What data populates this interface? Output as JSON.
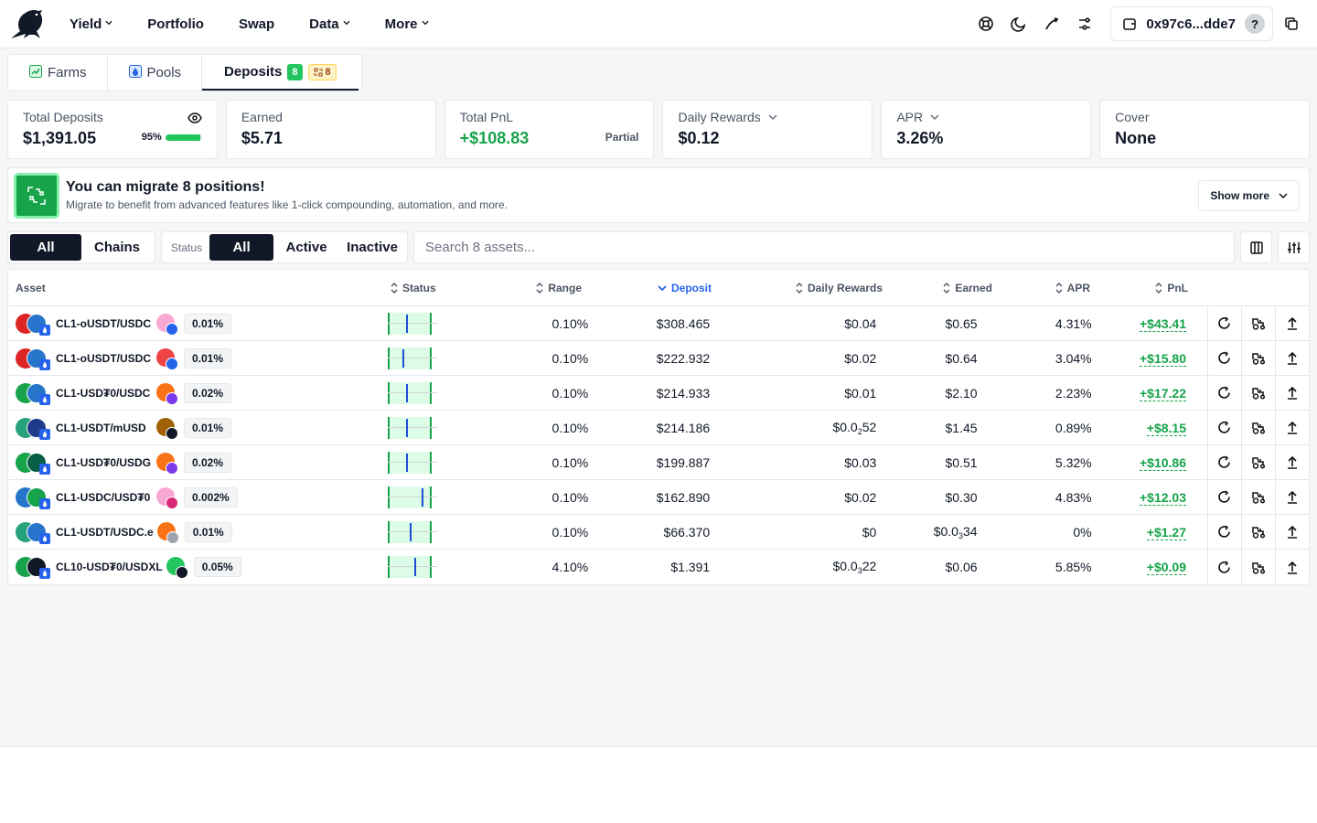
{
  "nav": {
    "items": [
      {
        "label": "Yield",
        "dropdown": true
      },
      {
        "label": "Portfolio",
        "dropdown": false
      },
      {
        "label": "Swap",
        "dropdown": false
      },
      {
        "label": "Data",
        "dropdown": true
      },
      {
        "label": "More",
        "dropdown": true
      }
    ],
    "wallet_address": "0x97c6...dde7",
    "help_label": "?"
  },
  "tabs": [
    {
      "label": "Farms",
      "icon": "farm-icon"
    },
    {
      "label": "Pools",
      "icon": "pool-icon"
    },
    {
      "label": "Deposits",
      "badge_count": "8",
      "badge_migrate": "8",
      "active": true
    }
  ],
  "cards": {
    "total_deposits": {
      "label": "Total Deposits",
      "value": "$1,391.05",
      "percent_label": "95%",
      "percent": 0.95
    },
    "earned": {
      "label": "Earned",
      "value": "$5.71"
    },
    "total_pnl": {
      "label": "Total PnL",
      "value": "+$108.83",
      "note": "Partial"
    },
    "daily_rewards": {
      "label": "Daily Rewards",
      "value": "$0.12"
    },
    "apr": {
      "label": "APR",
      "value": "3.26%"
    },
    "cover": {
      "label": "Cover",
      "value": "None"
    }
  },
  "migrate": {
    "title": "You can migrate 8 positions!",
    "subtitle": "Migrate to benefit from advanced features like 1-click compounding, automation, and more.",
    "button": "Show more"
  },
  "filters": {
    "scope": [
      "All",
      "Chains"
    ],
    "status_label": "Status",
    "status": [
      "All",
      "Active",
      "Inactive"
    ],
    "search_placeholder": "Search 8 assets..."
  },
  "table": {
    "headers": {
      "asset": "Asset",
      "status": "Status",
      "range": "Range",
      "deposit": "Deposit",
      "daily": "Daily Rewards",
      "earned": "Earned",
      "apr": "APR",
      "pnl": "PnL"
    },
    "rows": [
      {
        "name": "CL1-oUSDT/USDC",
        "fee": "0.01%",
        "range": "0.10%",
        "deposit": "$308.465",
        "daily": "$0.04",
        "earned": "$0.65",
        "apr": "4.31%",
        "pnl": "+$43.41",
        "pos": 0.42,
        "t1": "#dc2626",
        "t2": "#2775ca",
        "d1": "#f9a8d4",
        "d2": "#2563eb"
      },
      {
        "name": "CL1-oUSDT/USDC",
        "fee": "0.01%",
        "range": "0.10%",
        "deposit": "$222.932",
        "daily": "$0.02",
        "earned": "$0.64",
        "apr": "3.04%",
        "pnl": "+$15.80",
        "pos": 0.32,
        "t1": "#dc2626",
        "t2": "#2775ca",
        "d1": "#ef4444",
        "d2": "#2563eb"
      },
      {
        "name": "CL1-USD₮0/USDC",
        "fee": "0.02%",
        "range": "0.10%",
        "deposit": "$214.933",
        "daily": "$0.01",
        "earned": "$2.10",
        "apr": "2.23%",
        "pnl": "+$17.22",
        "pos": 0.42,
        "t1": "#16a34a",
        "t2": "#2775ca",
        "d1": "#f97316",
        "d2": "#7c3aed"
      },
      {
        "name": "CL1-USDT/mUSD",
        "fee": "0.01%",
        "range": "0.10%",
        "deposit": "$214.186",
        "daily_main": "$0.0",
        "daily_sub": "2",
        "daily_tail": "52",
        "earned": "$1.45",
        "apr": "0.89%",
        "pnl": "+$8.15",
        "pos": 0.42,
        "t1": "#26a17b",
        "t2": "#1e3a8a",
        "d1": "#a16207",
        "d2": "#111827"
      },
      {
        "name": "CL1-USD₮0/USDG",
        "fee": "0.02%",
        "range": "0.10%",
        "deposit": "$199.887",
        "daily": "$0.03",
        "earned": "$0.51",
        "apr": "5.32%",
        "pnl": "+$10.86",
        "pos": 0.42,
        "t1": "#16a34a",
        "t2": "#065f46",
        "d1": "#f97316",
        "d2": "#7c3aed"
      },
      {
        "name": "CL1-USDC/USD₮0",
        "fee": "0.002%",
        "range": "0.10%",
        "deposit": "$162.890",
        "daily": "$0.02",
        "earned": "$0.30",
        "apr": "4.83%",
        "pnl": "+$12.03",
        "pos": 0.8,
        "t1": "#2775ca",
        "t2": "#16a34a",
        "d1": "#f9a8d4",
        "d2": "#db2777"
      },
      {
        "name": "CL1-USDT/USDC.e",
        "fee": "0.01%",
        "range": "0.10%",
        "deposit": "$66.370",
        "daily": "$0",
        "earned_main": "$0.0",
        "earned_sub": "3",
        "earned_tail": "34",
        "apr": "0%",
        "pnl": "+$1.27",
        "pos": 0.5,
        "t1": "#26a17b",
        "t2": "#2775ca",
        "d1": "#f97316",
        "d2": "#9ca3af"
      },
      {
        "name": "CL10-USD₮0/USDXL",
        "fee": "0.05%",
        "range": "4.10%",
        "deposit": "$1.391",
        "daily_main": "$0.0",
        "daily_sub": "3",
        "daily_tail": "22",
        "earned": "$0.06",
        "apr": "5.85%",
        "pnl": "+$0.09",
        "pos": 0.62,
        "t1": "#16a34a",
        "t2": "#111827",
        "d1": "#22c55e",
        "d2": "#111827"
      }
    ]
  }
}
